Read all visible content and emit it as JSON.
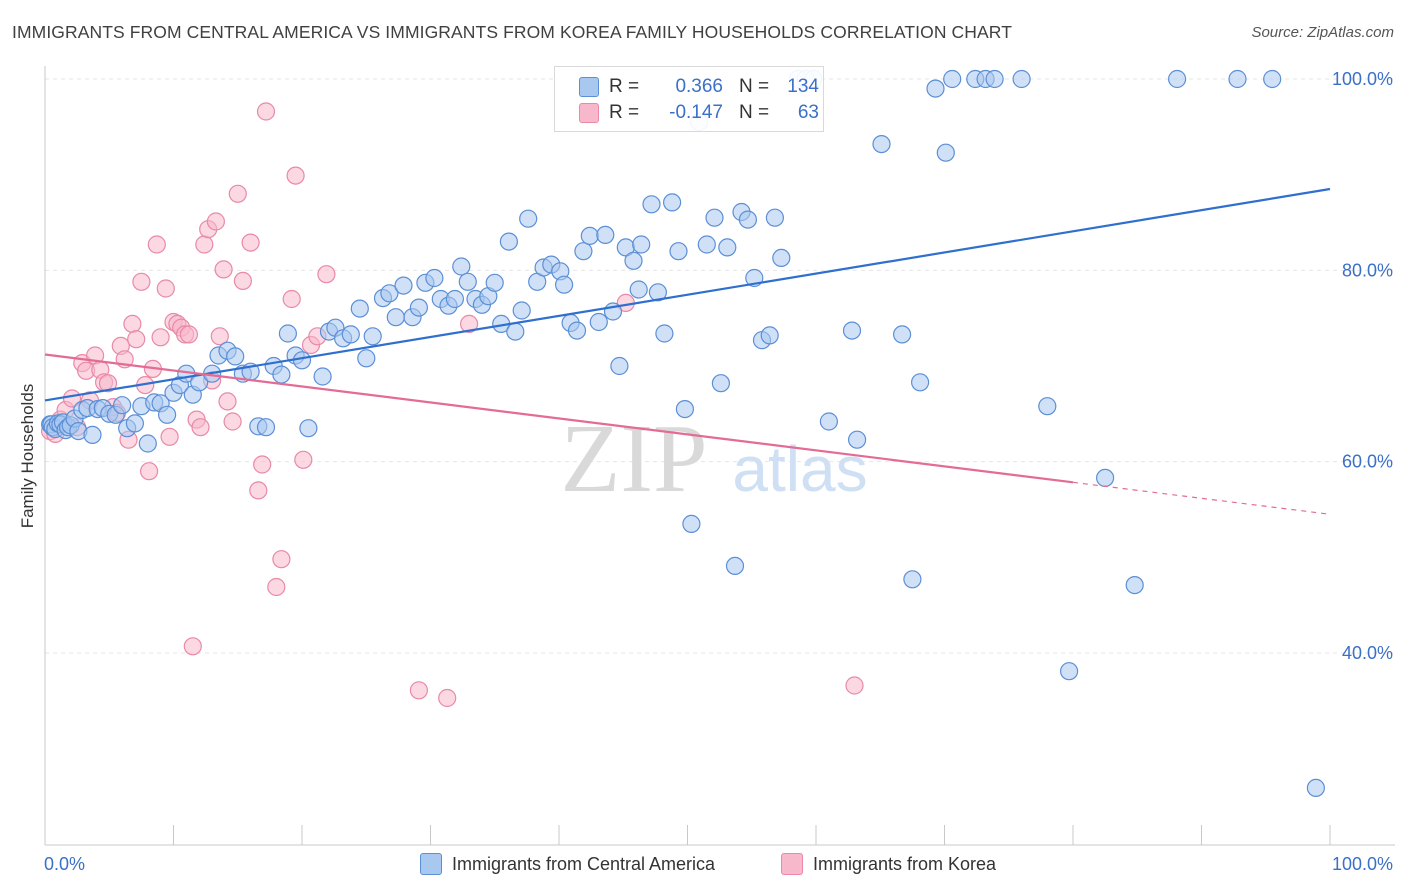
{
  "header": {
    "title": "IMMIGRANTS FROM CENTRAL AMERICA VS IMMIGRANTS FROM KOREA FAMILY HOUSEHOLDS CORRELATION CHART",
    "source": "Source: ZipAtlas.com"
  },
  "watermark": {
    "zip": "ZIP",
    "atlas": "atlas"
  },
  "colors": {
    "blue_fill": "#a9c8f0",
    "blue_stroke": "#5b8fd6",
    "blue_line": "#2f6fce",
    "pink_fill": "#f7b8cb",
    "pink_stroke": "#e889a8",
    "pink_line": "#e36b94",
    "axis_label": "#3a70c8",
    "grid": "#e6e6e6"
  },
  "legend_top": {
    "rows": [
      {
        "r_label": "R =",
        "r_value": "0.366",
        "n_label": "N =",
        "n_value": "134"
      },
      {
        "r_label": "R =",
        "r_value": "-0.147",
        "n_label": "N =",
        "n_value": "63"
      }
    ]
  },
  "legend_bottom": {
    "items": [
      {
        "label": "Immigrants from Central America"
      },
      {
        "label": "Immigrants from Korea"
      }
    ]
  },
  "chart_data": {
    "type": "scatter",
    "title": "IMMIGRANTS FROM CENTRAL AMERICA VS IMMIGRANTS FROM KOREA FAMILY HOUSEHOLDS CORRELATION CHART",
    "xlabel": "",
    "ylabel": "Family Households",
    "xlim": [
      0,
      100
    ],
    "ylim": [
      20,
      103
    ],
    "x_tick_labels": [
      "0.0%",
      "100.0%"
    ],
    "y_ticks": [
      40,
      60,
      80,
      100
    ],
    "y_tick_labels": [
      "40.0%",
      "60.0%",
      "80.0%",
      "100.0%"
    ],
    "grid": true,
    "legend_position": "top-center",
    "series": [
      {
        "name": "Immigrants from Central America",
        "R": 0.366,
        "N": 134,
        "trend": {
          "x": [
            0,
            100
          ],
          "y": [
            66.4,
            88.5
          ],
          "dashed_from_x": null
        },
        "points": [
          [
            0.4,
            63.9
          ],
          [
            0.5,
            63.9
          ],
          [
            0.6,
            63.6
          ],
          [
            0.8,
            63.4
          ],
          [
            1.0,
            64.0
          ],
          [
            1.2,
            63.9
          ],
          [
            1.4,
            64.1
          ],
          [
            1.6,
            63.3
          ],
          [
            1.8,
            63.6
          ],
          [
            2.0,
            63.8
          ],
          [
            2.3,
            64.5
          ],
          [
            2.6,
            63.2
          ],
          [
            2.9,
            65.4
          ],
          [
            3.3,
            65.6
          ],
          [
            3.7,
            62.8
          ],
          [
            4.1,
            65.5
          ],
          [
            4.5,
            65.6
          ],
          [
            5.0,
            65.0
          ],
          [
            5.5,
            64.9
          ],
          [
            6.0,
            65.9
          ],
          [
            6.4,
            63.5
          ],
          [
            7.0,
            64.0
          ],
          [
            7.5,
            65.8
          ],
          [
            8.0,
            61.9
          ],
          [
            8.5,
            66.2
          ],
          [
            9.0,
            66.1
          ],
          [
            9.5,
            64.9
          ],
          [
            10.0,
            67.2
          ],
          [
            10.5,
            68.0
          ],
          [
            11.0,
            69.2
          ],
          [
            11.5,
            67.0
          ],
          [
            12.0,
            68.3
          ],
          [
            13.0,
            69.2
          ],
          [
            13.5,
            71.1
          ],
          [
            14.2,
            71.6
          ],
          [
            14.8,
            71.0
          ],
          [
            15.4,
            69.2
          ],
          [
            16.0,
            69.4
          ],
          [
            16.6,
            63.7
          ],
          [
            17.2,
            63.6
          ],
          [
            17.8,
            70.0
          ],
          [
            18.4,
            69.1
          ],
          [
            18.9,
            73.4
          ],
          [
            19.5,
            71.1
          ],
          [
            20.0,
            70.6
          ],
          [
            20.5,
            63.5
          ],
          [
            21.6,
            68.9
          ],
          [
            22.1,
            73.6
          ],
          [
            22.6,
            74.0
          ],
          [
            23.2,
            72.9
          ],
          [
            23.8,
            73.3
          ],
          [
            24.5,
            76.0
          ],
          [
            25.0,
            70.8
          ],
          [
            25.5,
            73.1
          ],
          [
            26.3,
            77.1
          ],
          [
            26.8,
            77.6
          ],
          [
            27.3,
            75.1
          ],
          [
            27.9,
            78.4
          ],
          [
            28.6,
            75.1
          ],
          [
            29.1,
            76.1
          ],
          [
            29.6,
            78.7
          ],
          [
            30.3,
            79.2
          ],
          [
            30.8,
            77.0
          ],
          [
            31.4,
            76.3
          ],
          [
            31.9,
            77.0
          ],
          [
            32.4,
            80.4
          ],
          [
            32.9,
            78.8
          ],
          [
            33.5,
            77.0
          ],
          [
            34.0,
            76.4
          ],
          [
            34.5,
            77.3
          ],
          [
            35.0,
            78.7
          ],
          [
            35.5,
            74.4
          ],
          [
            36.1,
            83.0
          ],
          [
            36.6,
            73.6
          ],
          [
            37.1,
            75.8
          ],
          [
            37.6,
            85.4
          ],
          [
            38.3,
            78.8
          ],
          [
            38.8,
            80.3
          ],
          [
            39.4,
            80.6
          ],
          [
            40.1,
            79.9
          ],
          [
            40.4,
            78.5
          ],
          [
            40.9,
            74.5
          ],
          [
            41.4,
            73.7
          ],
          [
            41.9,
            82.0
          ],
          [
            42.4,
            83.6
          ],
          [
            43.1,
            74.6
          ],
          [
            43.6,
            83.7
          ],
          [
            44.2,
            75.7
          ],
          [
            44.7,
            70.0
          ],
          [
            45.2,
            82.4
          ],
          [
            45.8,
            81.0
          ],
          [
            46.2,
            78.0
          ],
          [
            46.4,
            82.7
          ],
          [
            47.2,
            86.9
          ],
          [
            47.7,
            77.7
          ],
          [
            48.2,
            73.4
          ],
          [
            48.8,
            87.1
          ],
          [
            49.3,
            82.0
          ],
          [
            49.8,
            65.5
          ],
          [
            50.3,
            53.5
          ],
          [
            50.9,
            95.5
          ],
          [
            51.5,
            82.7
          ],
          [
            52.1,
            85.5
          ],
          [
            52.6,
            68.2
          ],
          [
            53.1,
            82.4
          ],
          [
            53.7,
            49.1
          ],
          [
            54.2,
            86.1
          ],
          [
            54.7,
            85.3
          ],
          [
            55.2,
            79.2
          ],
          [
            55.8,
            72.7
          ],
          [
            56.4,
            73.2
          ],
          [
            56.8,
            85.5
          ],
          [
            57.3,
            81.3
          ],
          [
            58.6,
            100.0
          ],
          [
            59.2,
            100.0
          ],
          [
            59.8,
            100.0
          ],
          [
            61.0,
            64.2
          ],
          [
            62.8,
            73.7
          ],
          [
            63.2,
            62.3
          ],
          [
            65.1,
            93.2
          ],
          [
            66.7,
            73.3
          ],
          [
            67.5,
            47.7
          ],
          [
            68.1,
            68.3
          ],
          [
            69.3,
            99.0
          ],
          [
            70.1,
            92.3
          ],
          [
            70.6,
            100.0
          ],
          [
            72.4,
            100.0
          ],
          [
            73.2,
            100.0
          ],
          [
            73.9,
            100.0
          ],
          [
            76.0,
            100.0
          ],
          [
            78.0,
            65.8
          ],
          [
            79.7,
            38.1
          ],
          [
            82.5,
            58.3
          ],
          [
            84.8,
            47.1
          ],
          [
            88.1,
            100.0
          ],
          [
            92.8,
            100.0
          ],
          [
            95.5,
            100.0
          ],
          [
            98.9,
            25.9
          ]
        ]
      },
      {
        "name": "Immigrants from Korea",
        "R": -0.147,
        "N": 63,
        "trend": {
          "x": [
            0,
            100
          ],
          "y": [
            71.2,
            54.5
          ],
          "dashed_from_x": 80
        },
        "points": [
          [
            0.4,
            63.2
          ],
          [
            0.8,
            62.9
          ],
          [
            1.2,
            64.4
          ],
          [
            1.6,
            65.4
          ],
          [
            2.1,
            66.6
          ],
          [
            2.5,
            63.6
          ],
          [
            2.9,
            70.3
          ],
          [
            3.2,
            69.5
          ],
          [
            3.5,
            66.4
          ],
          [
            3.9,
            71.1
          ],
          [
            4.3,
            69.6
          ],
          [
            4.6,
            68.3
          ],
          [
            4.9,
            68.2
          ],
          [
            5.3,
            65.7
          ],
          [
            5.6,
            65.1
          ],
          [
            5.9,
            72.1
          ],
          [
            6.2,
            70.7
          ],
          [
            6.5,
            62.3
          ],
          [
            6.8,
            74.4
          ],
          [
            7.1,
            72.8
          ],
          [
            7.5,
            78.8
          ],
          [
            7.8,
            68.0
          ],
          [
            8.1,
            59.0
          ],
          [
            8.4,
            69.7
          ],
          [
            8.7,
            82.7
          ],
          [
            9.0,
            73.0
          ],
          [
            9.4,
            78.1
          ],
          [
            9.7,
            62.6
          ],
          [
            10.0,
            74.6
          ],
          [
            10.3,
            74.4
          ],
          [
            10.6,
            74.0
          ],
          [
            10.9,
            73.3
          ],
          [
            11.2,
            73.3
          ],
          [
            11.5,
            40.7
          ],
          [
            11.8,
            64.4
          ],
          [
            12.1,
            63.6
          ],
          [
            12.4,
            82.7
          ],
          [
            12.7,
            84.3
          ],
          [
            13.0,
            68.5
          ],
          [
            13.3,
            85.1
          ],
          [
            13.6,
            73.1
          ],
          [
            13.9,
            80.1
          ],
          [
            14.2,
            66.3
          ],
          [
            14.6,
            64.2
          ],
          [
            15.0,
            88.0
          ],
          [
            15.4,
            78.9
          ],
          [
            16.0,
            82.9
          ],
          [
            16.6,
            57.0
          ],
          [
            16.9,
            59.7
          ],
          [
            17.2,
            96.6
          ],
          [
            18.0,
            46.9
          ],
          [
            18.4,
            49.8
          ],
          [
            19.2,
            77.0
          ],
          [
            19.5,
            89.9
          ],
          [
            20.1,
            60.2
          ],
          [
            20.7,
            72.2
          ],
          [
            21.2,
            73.1
          ],
          [
            21.9,
            79.6
          ],
          [
            29.1,
            36.1
          ],
          [
            31.3,
            35.3
          ],
          [
            33.0,
            74.4
          ],
          [
            45.2,
            76.6
          ],
          [
            63.0,
            36.6
          ]
        ]
      }
    ]
  }
}
